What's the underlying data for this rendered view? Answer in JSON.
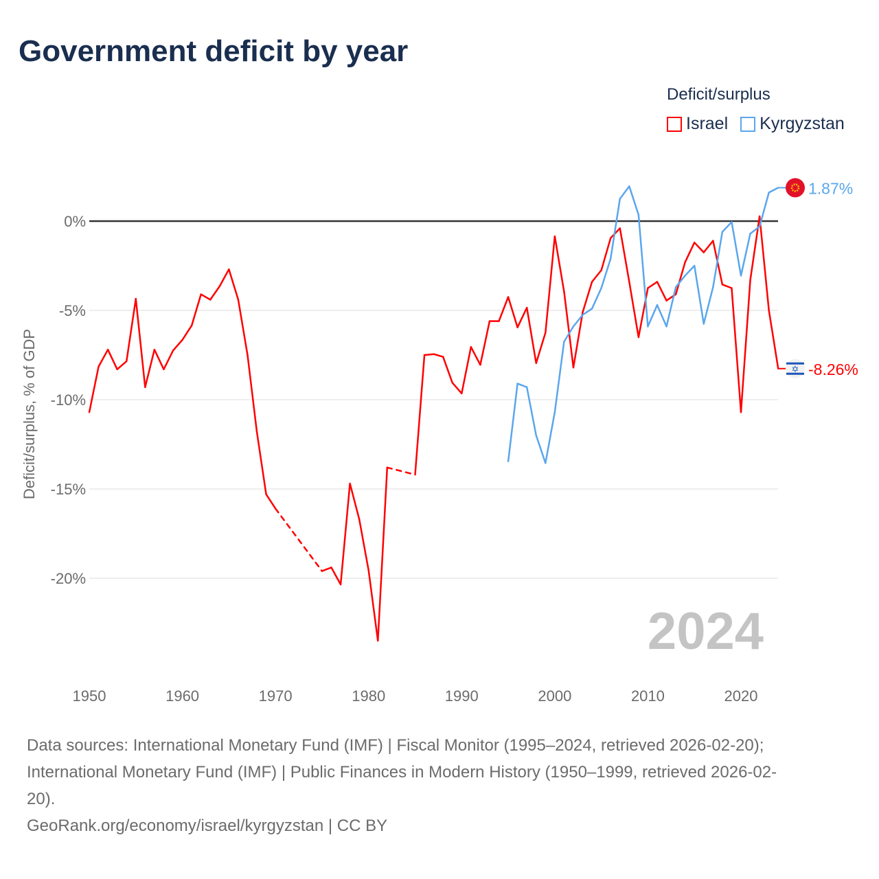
{
  "title": "Government deficit by year",
  "legend": {
    "title": "Deficit/surplus",
    "items": [
      "Israel",
      "Kyrgyzstan"
    ]
  },
  "year_watermark": "2024",
  "sources": {
    "line1": "Data sources: International Monetary Fund (IMF) | Fiscal Monitor (1995–2024, retrieved 2026-02-20);",
    "line2": "International Monetary Fund (IMF) | Public Finances in Modern History (1950–1999, retrieved 2026-02-",
    "line3": "20).",
    "line4": "GeoRank.org/economy/israel/kyrgyzstan | CC BY"
  },
  "chart_data": {
    "type": "line",
    "title": "Government deficit by year",
    "xlabel": "",
    "ylabel": "Deficit/surplus, % of GDP",
    "xlim": [
      1950,
      2024
    ],
    "ylim": [
      -25,
      3
    ],
    "xticks": [
      "1950",
      "1960",
      "1970",
      "1980",
      "1990",
      "2000",
      "2010",
      "2020"
    ],
    "yticks": [
      "0%",
      "-5%",
      "-10%",
      "-15%",
      "-20%"
    ],
    "legend_placement": "top-right",
    "series": [
      {
        "name": "Israel",
        "color": "#ff0000",
        "end_label": "-8.26%",
        "x": [
          1950,
          1951,
          1952,
          1953,
          1954,
          1955,
          1956,
          1957,
          1958,
          1959,
          1960,
          1961,
          1962,
          1963,
          1964,
          1965,
          1966,
          1967,
          1968,
          1969,
          1970,
          1975,
          1976,
          1977,
          1978,
          1979,
          1980,
          1981,
          1982,
          1985,
          1986,
          1987,
          1988,
          1989,
          1990,
          1991,
          1992,
          1993,
          1994,
          1995,
          1996,
          1997,
          1998,
          1999,
          2000,
          2001,
          2002,
          2003,
          2004,
          2005,
          2006,
          2007,
          2008,
          2009,
          2010,
          2011,
          2012,
          2013,
          2014,
          2015,
          2016,
          2017,
          2018,
          2019,
          2020,
          2021,
          2022,
          2023,
          2024
        ],
        "y": [
          -10.7,
          -8.15,
          -7.2,
          -8.3,
          -7.85,
          -4.35,
          -9.3,
          -7.2,
          -8.3,
          -7.25,
          -6.65,
          -5.85,
          -4.1,
          -4.4,
          -3.65,
          -2.7,
          -4.4,
          -7.5,
          -11.8,
          -15.3,
          -16.1,
          -19.6,
          -19.4,
          -20.35,
          -14.7,
          -16.7,
          -19.55,
          -23.5,
          -13.8,
          -14.2,
          -7.5,
          -7.45,
          -7.6,
          -9.05,
          -9.65,
          -7.05,
          -8.05,
          -5.6,
          -5.6,
          -4.25,
          -5.95,
          -4.85,
          -7.95,
          -6.25,
          -0.85,
          -3.95,
          -8.2,
          -5.1,
          -3.4,
          -2.75,
          -0.95,
          -0.4,
          -3.4,
          -6.5,
          -3.75,
          -3.4,
          -4.45,
          -4.1,
          -2.3,
          -1.2,
          -1.75,
          -1.1,
          -3.55,
          -3.75,
          -10.7,
          -3.3,
          0.27,
          -5.0,
          -8.26
        ]
      },
      {
        "name": "Kyrgyzstan",
        "color": "#5aa6ee",
        "end_label": "1.87%",
        "x": [
          1995,
          1996,
          1997,
          1998,
          1999,
          2000,
          2001,
          2002,
          2003,
          2004,
          2005,
          2006,
          2007,
          2008,
          2009,
          2010,
          2011,
          2012,
          2013,
          2014,
          2015,
          2016,
          2017,
          2018,
          2019,
          2020,
          2021,
          2022,
          2023,
          2024
        ],
        "y": [
          -13.45,
          -9.1,
          -9.3,
          -12.0,
          -13.55,
          -10.7,
          -6.75,
          -5.9,
          -5.25,
          -4.9,
          -3.75,
          -2.1,
          1.25,
          1.95,
          0.35,
          -5.9,
          -4.7,
          -5.9,
          -3.7,
          -3.05,
          -2.5,
          -5.75,
          -3.7,
          -0.6,
          -0.05,
          -3.05,
          -0.7,
          -0.3,
          1.6,
          1.87
        ]
      }
    ]
  }
}
